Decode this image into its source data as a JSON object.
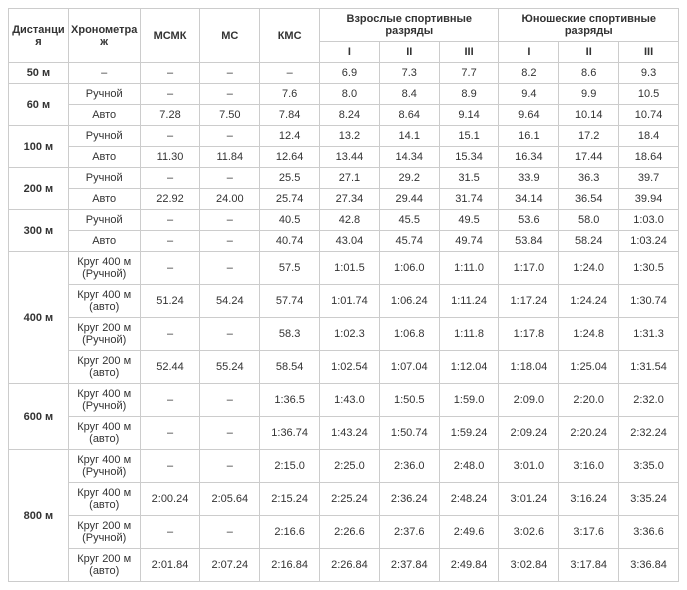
{
  "headers": {
    "distance": "Дистанция",
    "chrono": "Хронометраж",
    "msmk": "МСМК",
    "ms": "МС",
    "kms": "КМС",
    "adult": "Взрослые спортивные разряды",
    "junior": "Юношеские спортивные разряды",
    "r1": "I",
    "r2": "II",
    "r3": "III"
  },
  "distances": [
    "50 м",
    "60 м",
    "100 м",
    "200 м",
    "300 м",
    "400 м",
    "600 м",
    "800 м"
  ],
  "chrono_labels": {
    "dash": "–",
    "manual": "Ручной",
    "auto": "Авто",
    "lap400m": "Круг 400 м (Ручной)",
    "lap400a": "Круг 400 м (авто)",
    "lap200m": "Круг 200 м (Ручной)",
    "lap200a": "Круг 200 м (авто)"
  },
  "rows": [
    {
      "dist": 0,
      "chrono": "dash",
      "span": 1,
      "v": [
        "–",
        "–",
        "–",
        "6.9",
        "7.3",
        "7.7",
        "8.2",
        "8.6",
        "9.3"
      ]
    },
    {
      "dist": 1,
      "chrono": "manual",
      "span": 2,
      "v": [
        "–",
        "–",
        "7.6",
        "8.0",
        "8.4",
        "8.9",
        "9.4",
        "9.9",
        "10.5"
      ]
    },
    {
      "chrono": "auto",
      "v": [
        "7.28",
        "7.50",
        "7.84",
        "8.24",
        "8.64",
        "9.14",
        "9.64",
        "10.14",
        "10.74"
      ]
    },
    {
      "dist": 2,
      "chrono": "manual",
      "span": 2,
      "v": [
        "–",
        "–",
        "12.4",
        "13.2",
        "14.1",
        "15.1",
        "16.1",
        "17.2",
        "18.4"
      ]
    },
    {
      "chrono": "auto",
      "v": [
        "11.30",
        "11.84",
        "12.64",
        "13.44",
        "14.34",
        "15.34",
        "16.34",
        "17.44",
        "18.64"
      ]
    },
    {
      "dist": 3,
      "chrono": "manual",
      "span": 2,
      "v": [
        "–",
        "–",
        "25.5",
        "27.1",
        "29.2",
        "31.5",
        "33.9",
        "36.3",
        "39.7"
      ]
    },
    {
      "chrono": "auto",
      "v": [
        "22.92",
        "24.00",
        "25.74",
        "27.34",
        "29.44",
        "31.74",
        "34.14",
        "36.54",
        "39.94"
      ]
    },
    {
      "dist": 4,
      "chrono": "manual",
      "span": 2,
      "v": [
        "–",
        "–",
        "40.5",
        "42.8",
        "45.5",
        "49.5",
        "53.6",
        "58.0",
        "1:03.0"
      ]
    },
    {
      "chrono": "auto",
      "v": [
        "–",
        "–",
        "40.74",
        "43.04",
        "45.74",
        "49.74",
        "53.84",
        "58.24",
        "1:03.24"
      ]
    },
    {
      "dist": 5,
      "chrono": "lap400m",
      "span": 4,
      "v": [
        "–",
        "–",
        "57.5",
        "1:01.5",
        "1:06.0",
        "1:11.0",
        "1:17.0",
        "1:24.0",
        "1:30.5"
      ]
    },
    {
      "chrono": "lap400a",
      "v": [
        "51.24",
        "54.24",
        "57.74",
        "1:01.74",
        "1:06.24",
        "1:11.24",
        "1:17.24",
        "1:24.24",
        "1:30.74"
      ]
    },
    {
      "chrono": "lap200m",
      "v": [
        "–",
        "–",
        "58.3",
        "1:02.3",
        "1:06.8",
        "1:11.8",
        "1:17.8",
        "1:24.8",
        "1:31.3"
      ]
    },
    {
      "chrono": "lap200a",
      "v": [
        "52.44",
        "55.24",
        "58.54",
        "1:02.54",
        "1:07.04",
        "1:12.04",
        "1:18.04",
        "1:25.04",
        "1:31.54"
      ]
    },
    {
      "dist": 6,
      "chrono": "lap400m",
      "span": 2,
      "v": [
        "–",
        "–",
        "1:36.5",
        "1:43.0",
        "1:50.5",
        "1:59.0",
        "2:09.0",
        "2:20.0",
        "2:32.0"
      ]
    },
    {
      "chrono": "lap400a",
      "v": [
        "–",
        "–",
        "1:36.74",
        "1:43.24",
        "1:50.74",
        "1:59.24",
        "2:09.24",
        "2:20.24",
        "2:32.24"
      ]
    },
    {
      "dist": 7,
      "chrono": "lap400m",
      "span": 4,
      "v": [
        "–",
        "–",
        "2:15.0",
        "2:25.0",
        "2:36.0",
        "2:48.0",
        "3:01.0",
        "3:16.0",
        "3:35.0"
      ]
    },
    {
      "chrono": "lap400a",
      "v": [
        "2:00.24",
        "2:05.64",
        "2:15.24",
        "2:25.24",
        "2:36.24",
        "2:48.24",
        "3:01.24",
        "3:16.24",
        "3:35.24"
      ]
    },
    {
      "chrono": "lap200m",
      "v": [
        "–",
        "–",
        "2:16.6",
        "2:26.6",
        "2:37.6",
        "2:49.6",
        "3:02.6",
        "3:17.6",
        "3:36.6"
      ]
    },
    {
      "chrono": "lap200a",
      "v": [
        "2:01.84",
        "2:07.24",
        "2:16.84",
        "2:26.84",
        "2:37.84",
        "2:49.84",
        "3:02.84",
        "3:17.84",
        "3:36.84"
      ]
    }
  ],
  "style": {
    "border_color": "#cccccc",
    "text_color": "#333333",
    "font_size": 11,
    "header_weight": "bold"
  }
}
